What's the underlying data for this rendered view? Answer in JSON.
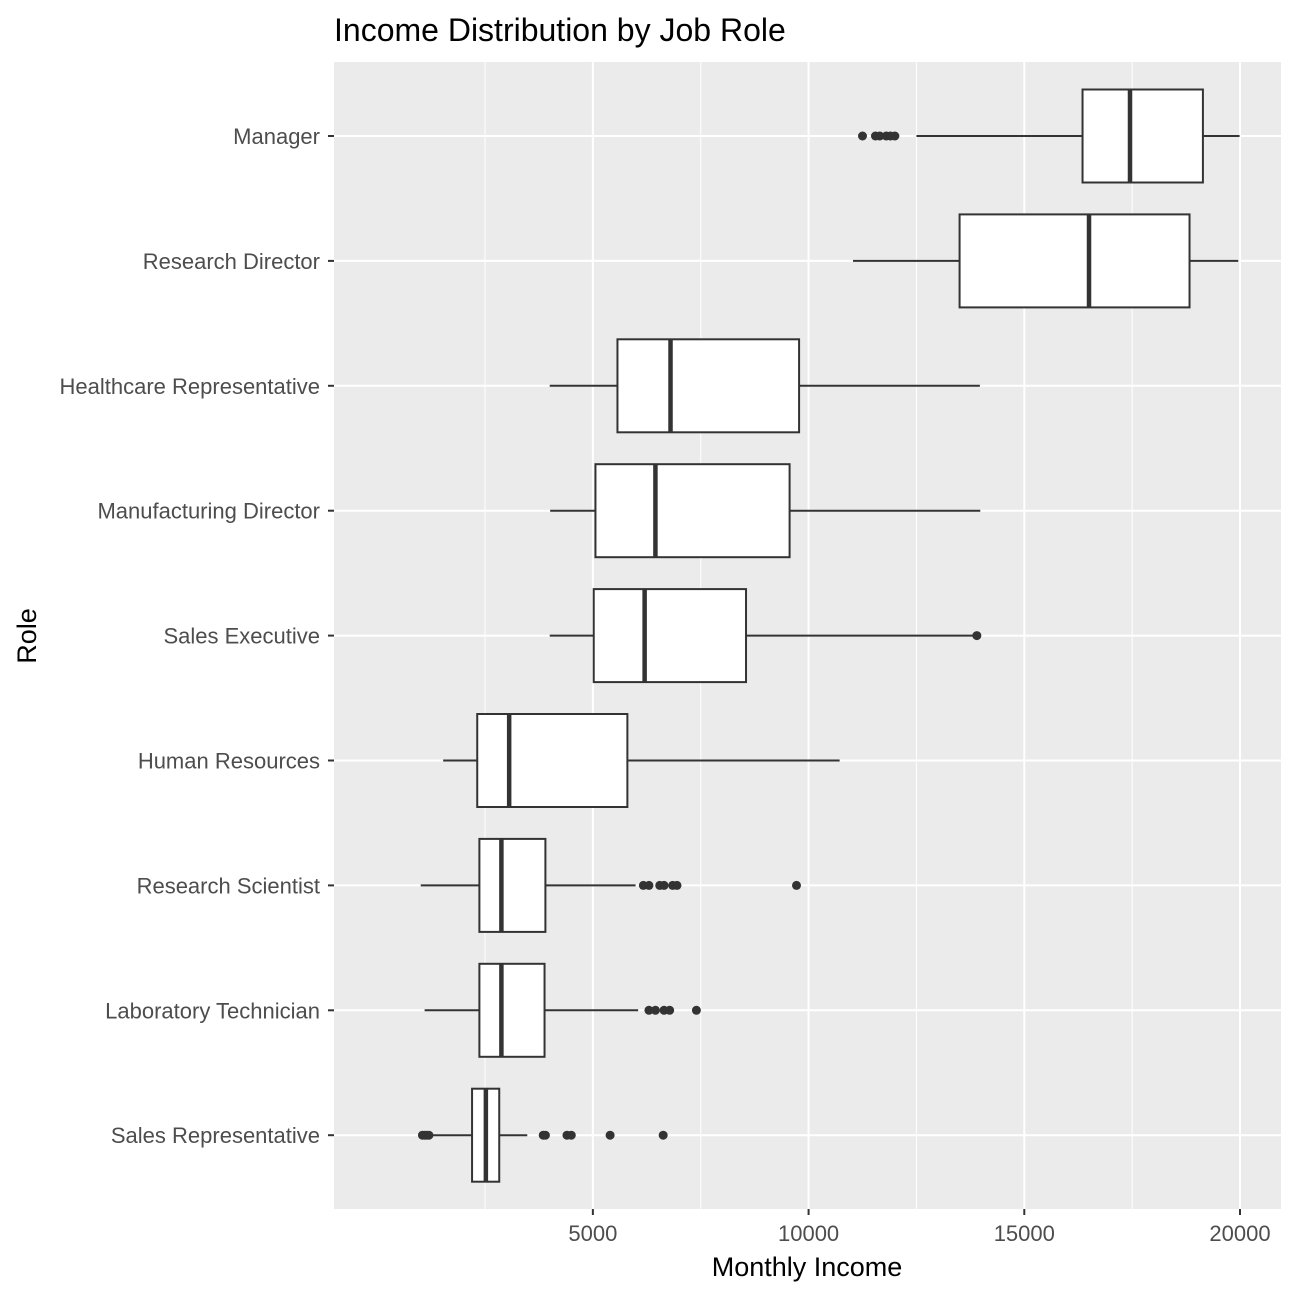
{
  "chart_data": {
    "type": "boxplot",
    "orientation": "horizontal",
    "title": "Income Distribution by Job Role",
    "xlabel": "Monthly Income",
    "ylabel": "Role",
    "xlim": [
      -1000,
      20950
    ],
    "xticks": [
      5000,
      10000,
      15000,
      20000
    ],
    "xtick_labels": [
      "5000",
      "10000",
      "15000",
      "20000"
    ],
    "grid": true,
    "background": "#ebebeb",
    "grid_color": "#ffffff",
    "box_fill": "#ffffff",
    "line_color": "#333333",
    "categories": [
      "Manager",
      "Research Director",
      "Healthcare Representative",
      "Manufacturing Director",
      "Sales Executive",
      "Human Resources",
      "Research Scientist",
      "Laboratory Technician",
      "Sales Representative"
    ],
    "series": [
      {
        "category": "Manager",
        "whisker_low": 12500,
        "q1": 16350,
        "median": 17450,
        "q3": 19140,
        "whisker_high": 19990,
        "outliers": [
          11250,
          11550,
          11650,
          11800,
          11900,
          12000
        ]
      },
      {
        "category": "Research Director",
        "whisker_low": 11030,
        "q1": 13500,
        "median": 16500,
        "q3": 18830,
        "whisker_high": 19960,
        "outliers": []
      },
      {
        "category": "Healthcare Representative",
        "whisker_low": 4000,
        "q1": 5570,
        "median": 6800,
        "q3": 9780,
        "whisker_high": 13970,
        "outliers": []
      },
      {
        "category": "Manufacturing Director",
        "whisker_low": 4010,
        "q1": 5060,
        "median": 6450,
        "q3": 9560,
        "whisker_high": 13980,
        "outliers": []
      },
      {
        "category": "Sales Executive",
        "whisker_low": 4000,
        "q1": 5020,
        "median": 6200,
        "q3": 8550,
        "whisker_high": 13900,
        "outliers": [
          13900
        ]
      },
      {
        "category": "Human Resources",
        "whisker_low": 1530,
        "q1": 2320,
        "median": 3060,
        "q3": 5800,
        "whisker_high": 10720,
        "outliers": []
      },
      {
        "category": "Research Scientist",
        "whisker_low": 1010,
        "q1": 2370,
        "median": 2880,
        "q3": 3900,
        "whisker_high": 5990,
        "outliers": [
          6170,
          6300,
          6550,
          6650,
          6850,
          6950,
          9720
        ]
      },
      {
        "category": "Laboratory Technician",
        "whisker_low": 1100,
        "q1": 2370,
        "median": 2880,
        "q3": 3880,
        "whisker_high": 6050,
        "outliers": [
          6300,
          6450,
          6650,
          6780,
          7400
        ]
      },
      {
        "category": "Sales Representative",
        "whisker_low": 1250,
        "q1": 2200,
        "median": 2520,
        "q3": 2830,
        "whisker_high": 3480,
        "outliers": [
          1050,
          1100,
          1150,
          1200,
          3850,
          3900,
          4400,
          4500,
          5400,
          6630
        ]
      }
    ]
  }
}
